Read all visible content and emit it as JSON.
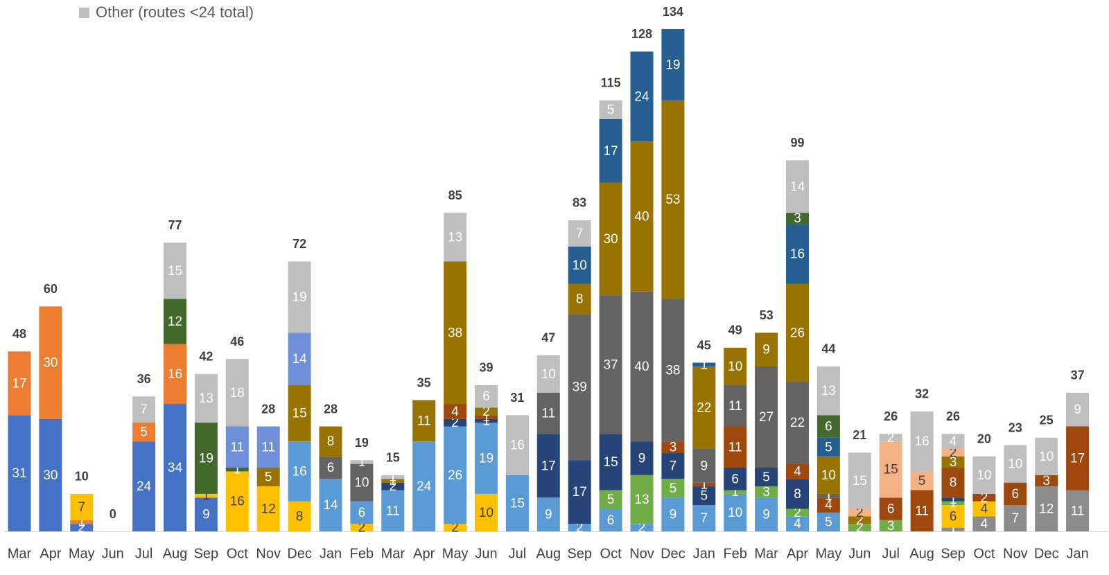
{
  "chart_data": {
    "type": "stacked_bar",
    "categories": [
      "Mar",
      "Apr",
      "May",
      "Jun",
      "Jul",
      "Aug",
      "Sep",
      "Oct",
      "Nov",
      "Dec",
      "Jan",
      "Feb",
      "Mar",
      "Apr",
      "May",
      "Jun",
      "Jul",
      "Aug",
      "Sep",
      "Oct",
      "Nov",
      "Dec",
      "Jan",
      "Feb",
      "Mar",
      "Apr",
      "May",
      "Jun",
      "Jul",
      "Aug",
      "Sep",
      "Oct",
      "Nov",
      "Dec",
      "Jan"
    ],
    "totals": [
      48,
      60,
      10,
      0,
      36,
      77,
      42,
      46,
      28,
      72,
      28,
      19,
      15,
      35,
      85,
      39,
      31,
      47,
      83,
      115,
      128,
      134,
      45,
      49,
      53,
      99,
      44,
      21,
      26,
      32,
      26,
      20,
      23,
      25,
      37
    ],
    "series": [
      {
        "color": "#4472c4",
        "values": [
          31,
          30,
          2,
          null,
          24,
          34,
          9,
          null,
          null,
          null,
          null,
          null,
          null,
          null,
          null,
          null,
          null,
          null,
          null,
          null,
          null,
          null,
          null,
          null,
          null,
          null,
          null,
          null,
          null,
          null,
          null,
          null,
          null,
          null,
          null
        ]
      },
      {
        "color": "#ed7d31",
        "values": [
          17,
          30,
          1,
          null,
          5,
          16,
          null,
          null,
          null,
          null,
          null,
          null,
          null,
          null,
          null,
          null,
          null,
          null,
          null,
          null,
          null,
          null,
          null,
          null,
          null,
          null,
          null,
          null,
          null,
          null,
          null,
          null,
          null,
          null,
          null
        ]
      },
      {
        "color": "#8c8c8c",
        "values": [
          null,
          null,
          null,
          null,
          null,
          null,
          null,
          null,
          null,
          null,
          null,
          null,
          null,
          null,
          null,
          null,
          null,
          null,
          null,
          null,
          null,
          null,
          null,
          null,
          null,
          null,
          null,
          null,
          null,
          null,
          1,
          4,
          7,
          12,
          11
        ]
      },
      {
        "color": "#ffc000",
        "values": [
          null,
          null,
          7,
          null,
          null,
          null,
          1,
          16,
          12,
          8,
          null,
          2,
          null,
          null,
          2,
          10,
          null,
          null,
          null,
          null,
          null,
          null,
          null,
          null,
          null,
          null,
          null,
          null,
          null,
          null,
          6,
          4,
          null,
          null,
          null
        ]
      },
      {
        "color": "#5b9bd5",
        "values": [
          null,
          null,
          null,
          null,
          null,
          null,
          null,
          null,
          null,
          16,
          14,
          6,
          11,
          24,
          26,
          19,
          15,
          9,
          2,
          6,
          2,
          9,
          7,
          10,
          9,
          4,
          5,
          null,
          null,
          null,
          null,
          null,
          null,
          null,
          null
        ]
      },
      {
        "color": "#70ad47",
        "values": [
          null,
          null,
          null,
          null,
          null,
          null,
          null,
          null,
          null,
          null,
          null,
          null,
          null,
          null,
          null,
          null,
          null,
          null,
          null,
          5,
          13,
          5,
          null,
          1,
          3,
          2,
          null,
          2,
          3,
          null,
          1,
          null,
          null,
          null,
          null
        ]
      },
      {
        "color": "#264478",
        "values": [
          null,
          null,
          null,
          null,
          null,
          null,
          null,
          null,
          null,
          null,
          null,
          null,
          2,
          null,
          2,
          1,
          null,
          17,
          17,
          15,
          9,
          7,
          5,
          6,
          5,
          8,
          null,
          null,
          null,
          null,
          1,
          null,
          null,
          null,
          null
        ]
      },
      {
        "color": "#9e480e",
        "values": [
          null,
          null,
          null,
          null,
          null,
          null,
          null,
          null,
          null,
          null,
          null,
          null,
          null,
          null,
          4,
          1,
          null,
          null,
          null,
          null,
          null,
          3,
          1,
          11,
          null,
          4,
          4,
          null,
          6,
          11,
          8,
          2,
          6,
          3,
          17
        ]
      },
      {
        "color": "#636363",
        "values": [
          null,
          null,
          null,
          null,
          null,
          null,
          null,
          null,
          null,
          null,
          6,
          10,
          null,
          null,
          null,
          null,
          null,
          11,
          39,
          37,
          40,
          38,
          9,
          11,
          27,
          22,
          1,
          null,
          null,
          null,
          null,
          null,
          null,
          null,
          null
        ]
      },
      {
        "color": "#997300",
        "values": [
          null,
          null,
          null,
          null,
          null,
          null,
          null,
          null,
          5,
          15,
          8,
          null,
          1,
          11,
          38,
          2,
          null,
          null,
          8,
          30,
          40,
          53,
          22,
          10,
          9,
          26,
          10,
          2,
          null,
          null,
          3,
          null,
          null,
          null,
          null
        ]
      },
      {
        "color": "#255e91",
        "values": [
          null,
          null,
          null,
          null,
          null,
          null,
          null,
          null,
          null,
          null,
          null,
          null,
          null,
          null,
          null,
          null,
          null,
          null,
          10,
          17,
          24,
          19,
          1,
          null,
          null,
          16,
          5,
          null,
          null,
          null,
          null,
          null,
          null,
          null,
          null
        ]
      },
      {
        "color": "#43682b",
        "values": [
          null,
          null,
          null,
          null,
          null,
          12,
          19,
          1,
          null,
          null,
          null,
          null,
          null,
          null,
          null,
          null,
          null,
          null,
          null,
          null,
          null,
          null,
          null,
          null,
          null,
          3,
          6,
          null,
          null,
          null,
          null,
          null,
          null,
          null,
          null
        ]
      },
      {
        "color": "#6f8fd8",
        "values": [
          null,
          null,
          null,
          null,
          null,
          null,
          null,
          11,
          11,
          14,
          null,
          null,
          null,
          null,
          null,
          null,
          null,
          null,
          null,
          null,
          null,
          null,
          null,
          null,
          null,
          null,
          null,
          null,
          null,
          null,
          null,
          null,
          null,
          null,
          null
        ]
      },
      {
        "color": "#f4b183",
        "values": [
          null,
          null,
          null,
          null,
          null,
          null,
          null,
          null,
          null,
          null,
          null,
          null,
          null,
          null,
          null,
          null,
          null,
          null,
          null,
          null,
          null,
          null,
          null,
          null,
          null,
          null,
          null,
          2,
          15,
          5,
          2,
          null,
          null,
          null,
          null
        ]
      },
      {
        "name": "Other (routes <24 total)",
        "color": "#bfbfbf",
        "values": [
          null,
          null,
          null,
          null,
          7,
          15,
          13,
          18,
          null,
          19,
          null,
          1,
          1,
          null,
          13,
          6,
          16,
          10,
          7,
          5,
          null,
          null,
          null,
          null,
          null,
          14,
          13,
          15,
          2,
          16,
          4,
          10,
          10,
          10,
          9
        ]
      }
    ]
  }
}
